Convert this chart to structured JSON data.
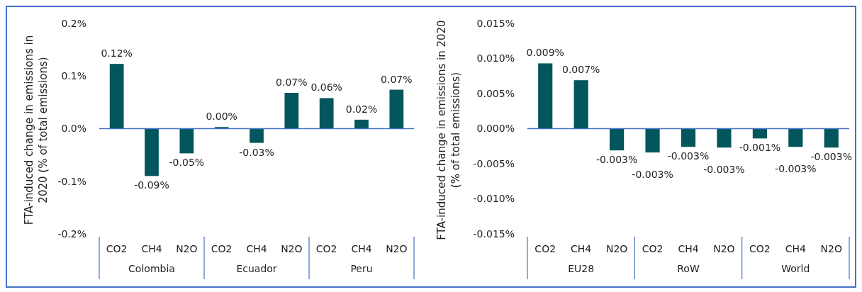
{
  "chart_data": [
    {
      "type": "bar",
      "ylabel": "FTA-induced change in emissions in 2020 (% of total emissions)",
      "categories": [
        "CO2",
        "CH4",
        "N2O",
        "CO2",
        "CH4",
        "N2O",
        "CO2",
        "CH4",
        "N2O"
      ],
      "annotations": [
        "Colombia",
        "Ecuador",
        "Peru"
      ],
      "values": [
        0.123,
        -0.09,
        -0.047,
        0.003,
        -0.027,
        0.068,
        0.058,
        0.017,
        0.074
      ],
      "value_labels": [
        "0.12%",
        "-0.09%",
        "-0.05%",
        "0.00%",
        "-0.03%",
        "0.07%",
        "0.06%",
        "0.02%",
        "0.07%"
      ],
      "color": "#02565c",
      "ylim": [
        -0.2,
        0.2
      ],
      "yticks": [
        {
          "value": -0.2,
          "label": "-0.2%"
        },
        {
          "value": -0.1,
          "label": "-0.1%"
        },
        {
          "value": 0,
          "label": "0.0%"
        },
        {
          "value": 0.1,
          "label": "0.1%"
        },
        {
          "value": 0.2,
          "label": "0.2%"
        }
      ],
      "ref_lines": [
        {
          "axis": "y",
          "value": 0,
          "color": "#4472c4"
        }
      ],
      "grid": false
    },
    {
      "type": "bar",
      "ylabel": "FTA-induced change in emissions in 2020 (% of total emissions)",
      "categories": [
        "CO2",
        "CH4",
        "N2O",
        "CO2",
        "CH4",
        "N2O",
        "CO2",
        "CH4",
        "N2O"
      ],
      "annotations": [
        "EU28",
        "RoW",
        "World"
      ],
      "values": [
        0.0093,
        0.0069,
        -0.0031,
        -0.0034,
        -0.0026,
        -0.0027,
        -0.0014,
        -0.0026,
        -0.0027
      ],
      "value_labels": [
        "0.009%",
        "0.007%",
        "-0.003%",
        "-0.003%",
        "-0.003%",
        "-0.003%",
        "-0.001%",
        "-0.003%",
        "-0.003%"
      ],
      "color": "#02565c",
      "ylim": [
        -0.015,
        0.015
      ],
      "yticks": [
        {
          "value": -0.015,
          "label": "-0.015%"
        },
        {
          "value": -0.01,
          "label": "-0.010%"
        },
        {
          "value": -0.005,
          "label": "-0.005%"
        },
        {
          "value": 0,
          "label": "0.000%"
        },
        {
          "value": 0.005,
          "label": "0.005%"
        },
        {
          "value": 0.01,
          "label": "0.010%"
        },
        {
          "value": 0.015,
          "label": "0.015%"
        }
      ],
      "ref_lines": [
        {
          "axis": "y",
          "value": 0,
          "color": "#4472c4"
        }
      ],
      "grid": false
    }
  ]
}
